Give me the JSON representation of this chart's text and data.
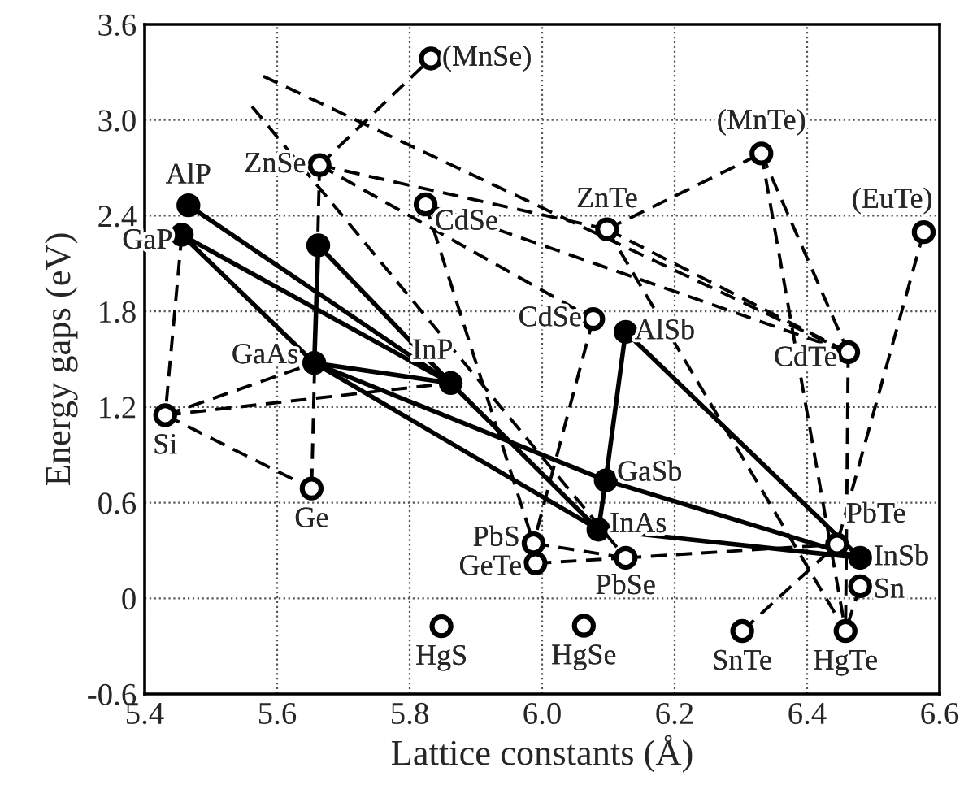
{
  "chart_data": {
    "type": "scatter",
    "xlabel": "Lattice constants (Å)",
    "ylabel": "Energy gaps (eV)",
    "xlim": [
      5.4,
      6.6
    ],
    "xticks": [
      5.4,
      5.6,
      5.8,
      {
        "value": 6,
        "label": "6.0"
      },
      6.2,
      6.4,
      6.6
    ],
    "ylim": [
      -0.6,
      3.6
    ],
    "yticks": [
      -0.6,
      0,
      0.6,
      1.2,
      1.8,
      2.4,
      {
        "value": 3,
        "label": "3.0"
      },
      3.6
    ],
    "grid": true,
    "series": [
      {
        "type": "line",
        "line_style": "solid",
        "color": "#000000",
        "x": [
          5.466,
          5.862
        ],
        "values": [
          2.465,
          1.35
        ]
      },
      {
        "type": "line",
        "line_style": "solid",
        "color": "#000000",
        "x": [
          5.456,
          5.862
        ],
        "values": [
          2.28,
          1.35
        ]
      },
      {
        "type": "line",
        "line_style": "solid",
        "color": "#000000",
        "x": [
          5.456,
          5.656
        ],
        "values": [
          2.28,
          1.476
        ]
      },
      {
        "type": "line",
        "line_style": "solid",
        "color": "#000000",
        "x": [
          5.662,
          5.656
        ],
        "values": [
          2.214,
          1.476
        ]
      },
      {
        "type": "line",
        "line_style": "solid",
        "color": "#000000",
        "x": [
          5.662,
          5.862
        ],
        "values": [
          2.214,
          1.35
        ]
      },
      {
        "type": "line",
        "line_style": "solid",
        "color": "#000000",
        "x": [
          5.656,
          5.862
        ],
        "values": [
          1.476,
          1.35
        ]
      },
      {
        "type": "line",
        "line_style": "solid",
        "color": "#000000",
        "x": [
          5.656,
          6.085
        ],
        "values": [
          1.476,
          0.431
        ]
      },
      {
        "type": "line",
        "line_style": "solid",
        "color": "#000000",
        "x": [
          5.656,
          6.096
        ],
        "values": [
          1.476,
          0.74
        ]
      },
      {
        "type": "line",
        "line_style": "solid",
        "color": "#000000",
        "x": [
          5.862,
          6.085
        ],
        "values": [
          1.35,
          0.431
        ]
      },
      {
        "type": "line",
        "line_style": "solid",
        "color": "#000000",
        "x": [
          6.085,
          6.096
        ],
        "values": [
          0.431,
          0.74
        ]
      },
      {
        "type": "line",
        "line_style": "solid",
        "color": "#000000",
        "x": [
          6.096,
          6.48
        ],
        "values": [
          0.74,
          0.254
        ]
      },
      {
        "type": "line",
        "line_style": "solid",
        "color": "#000000",
        "x": [
          6.085,
          6.48
        ],
        "values": [
          0.431,
          0.254
        ]
      },
      {
        "type": "line",
        "line_style": "solid",
        "color": "#000000",
        "x": [
          6.126,
          6.096
        ],
        "values": [
          1.671,
          0.74
        ]
      },
      {
        "type": "line",
        "line_style": "solid",
        "color": "#000000",
        "x": [
          6.126,
          6.48
        ],
        "values": [
          1.671,
          0.254
        ]
      },
      {
        "type": "line",
        "line_style": "dashed",
        "color": "#000000",
        "x": [
          5.456,
          5.431
        ],
        "values": [
          2.28,
          1.149
        ]
      },
      {
        "type": "line",
        "line_style": "dashed",
        "color": "#000000",
        "x": [
          5.431,
          5.656
        ],
        "values": [
          1.149,
          1.476
        ]
      },
      {
        "type": "line",
        "line_style": "dashed",
        "color": "#000000",
        "x": [
          5.431,
          5.862
        ],
        "values": [
          1.149,
          1.35
        ]
      },
      {
        "type": "line",
        "line_style": "dashed",
        "color": "#000000",
        "x": [
          5.431,
          5.652
        ],
        "values": [
          1.149,
          0.689
        ]
      },
      {
        "type": "line",
        "line_style": "dashed",
        "color": "#000000",
        "x": [
          5.664,
          5.652
        ],
        "values": [
          2.717,
          0.689
        ]
      },
      {
        "type": "line",
        "line_style": "dashed",
        "color": "#000000",
        "x": [
          5.664,
          5.832
        ],
        "values": [
          2.717,
          3.386
        ]
      },
      {
        "type": "line",
        "line_style": "dashed",
        "color": "#000000",
        "x": [
          5.664,
          6.098
        ],
        "values": [
          2.717,
          2.315
        ]
      },
      {
        "type": "line",
        "line_style": "dashed",
        "color": "#000000",
        "x": [
          5.664,
          6.077
        ],
        "values": [
          2.717,
          1.752
        ]
      },
      {
        "type": "line",
        "line_style": "dashed",
        "color": "#000000",
        "x": [
          5.824,
          6.462
        ],
        "values": [
          2.471,
          1.544
        ]
      },
      {
        "type": "line",
        "line_style": "dashed",
        "color": "#000000",
        "x": [
          5.824,
          5.987
        ],
        "values": [
          2.471,
          0.345
        ]
      },
      {
        "type": "line",
        "line_style": "dashed",
        "color": "#000000",
        "x": [
          6.077,
          5.987
        ],
        "values": [
          1.752,
          0.345
        ]
      },
      {
        "type": "line",
        "line_style": "dashed",
        "color": "#000000",
        "x": [
          6.098,
          6.331
        ],
        "values": [
          2.315,
          2.79
        ]
      },
      {
        "type": "line",
        "line_style": "dashed",
        "color": "#000000",
        "x": [
          6.098,
          6.462
        ],
        "values": [
          2.315,
          1.544
        ]
      },
      {
        "type": "line",
        "line_style": "dashed",
        "color": "#000000",
        "x": [
          6.098,
          6.458
        ],
        "values": [
          2.315,
          -0.205
        ]
      },
      {
        "type": "line",
        "line_style": "dashed",
        "color": "#000000",
        "x": [
          6.331,
          6.462
        ],
        "values": [
          2.79,
          1.544
        ]
      },
      {
        "type": "line",
        "line_style": "dashed",
        "color": "#000000",
        "x": [
          6.331,
          6.458
        ],
        "values": [
          2.79,
          -0.205
        ]
      },
      {
        "type": "line",
        "line_style": "dashed",
        "color": "#000000",
        "x": [
          6.462,
          6.458
        ],
        "values": [
          1.544,
          -0.205
        ]
      },
      {
        "type": "line",
        "line_style": "dashed",
        "color": "#000000",
        "x": [
          6.576,
          6.445
        ],
        "values": [
          2.297,
          0.338
        ]
      },
      {
        "type": "line",
        "line_style": "dashed",
        "color": "#000000",
        "x": [
          5.987,
          6.126
        ],
        "values": [
          0.345,
          0.254
        ]
      },
      {
        "type": "line",
        "line_style": "dashed",
        "color": "#000000",
        "x": [
          5.99,
          6.126
        ],
        "values": [
          0.22,
          0.254
        ]
      },
      {
        "type": "line",
        "line_style": "dashed",
        "color": "#000000",
        "x": [
          6.126,
          6.445
        ],
        "values": [
          0.254,
          0.338
        ]
      },
      {
        "type": "line",
        "line_style": "dashed",
        "color": "#000000",
        "x": [
          6.302,
          6.445
        ],
        "values": [
          -0.205,
          0.338
        ]
      },
      {
        "type": "line",
        "line_style": "dashed",
        "color": "#000000",
        "x": [
          6.48,
          6.458
        ],
        "values": [
          0.076,
          -0.205
        ]
      },
      {
        "type": "line",
        "line_style": "dashed",
        "color": "#000000",
        "x": [
          5.579,
          6.462
        ],
        "values": [
          3.275,
          1.544
        ]
      },
      {
        "type": "line",
        "line_style": "dashed",
        "color": "#000000",
        "x": [
          5.562,
          6.126
        ],
        "values": [
          3.085,
          0.254
        ]
      },
      {
        "marker": "circle",
        "color": "#000000",
        "x": [
          5.466,
          5.456,
          5.662,
          5.656,
          5.862,
          6.126,
          6.096,
          6.085,
          6.48
        ],
        "values": [
          2.465,
          2.28,
          2.214,
          1.476,
          1.35,
          1.671,
          0.74,
          0.431,
          0.254
        ]
      },
      {
        "marker": "circle",
        "color": "#ffffff",
        "x": [
          5.664,
          5.832,
          5.824,
          6.098,
          6.331,
          6.576,
          6.077,
          6.462,
          5.431,
          5.652,
          5.987,
          6.445,
          5.99,
          6.126,
          6.48,
          5.848,
          6.063,
          6.302,
          6.458
        ],
        "values": [
          2.717,
          3.386,
          2.471,
          2.315,
          2.79,
          2.297,
          1.752,
          1.544,
          1.149,
          0.689,
          0.345,
          0.338,
          0.22,
          0.254,
          0.076,
          -0.175,
          -0.172,
          -0.205,
          -0.205
        ]
      }
    ],
    "annotations": [
      {
        "text": "AlP",
        "x": 5.466,
        "y": 2.465
      },
      {
        "text": "GaP",
        "x": 5.456,
        "y": 2.28
      },
      {
        "text": "ZnSe",
        "x": 5.664,
        "y": 2.717
      },
      {
        "text": "(MnSe)",
        "x": 5.832,
        "y": 3.386
      },
      {
        "text": "CdSe",
        "x": 5.824,
        "y": 2.471
      },
      {
        "text": "ZnTe",
        "x": 6.098,
        "y": 2.315
      },
      {
        "text": "(MnTe)",
        "x": 6.331,
        "y": 2.79
      },
      {
        "text": "(EuTe)",
        "x": 6.576,
        "y": 2.297
      },
      {
        "text": "CdSe",
        "x": 6.077,
        "y": 1.752
      },
      {
        "text": "AlSb",
        "x": 6.126,
        "y": 1.671
      },
      {
        "text": "GaAs",
        "x": 5.656,
        "y": 1.476
      },
      {
        "text": "InP",
        "x": 5.862,
        "y": 1.35
      },
      {
        "text": "CdTe",
        "x": 6.462,
        "y": 1.544
      },
      {
        "text": "Si",
        "x": 5.431,
        "y": 1.149
      },
      {
        "text": "GaSb",
        "x": 6.096,
        "y": 0.74
      },
      {
        "text": "Ge",
        "x": 5.652,
        "y": 0.689
      },
      {
        "text": "PbS",
        "x": 5.987,
        "y": 0.345
      },
      {
        "text": "InAs",
        "x": 6.085,
        "y": 0.431
      },
      {
        "text": "PbTe",
        "x": 6.445,
        "y": 0.338
      },
      {
        "text": "InSb",
        "x": 6.48,
        "y": 0.254
      },
      {
        "text": "GeTe",
        "x": 5.99,
        "y": 0.22
      },
      {
        "text": "PbSe",
        "x": 6.126,
        "y": 0.254
      },
      {
        "text": "Sn",
        "x": 6.48,
        "y": 0.076
      },
      {
        "text": "HgS",
        "x": 5.848,
        "y": -0.175
      },
      {
        "text": "HgSe",
        "x": 6.063,
        "y": -0.172
      },
      {
        "text": "SnTe",
        "x": 6.302,
        "y": -0.205
      },
      {
        "text": "HgTe",
        "x": 6.458,
        "y": -0.205
      }
    ]
  }
}
